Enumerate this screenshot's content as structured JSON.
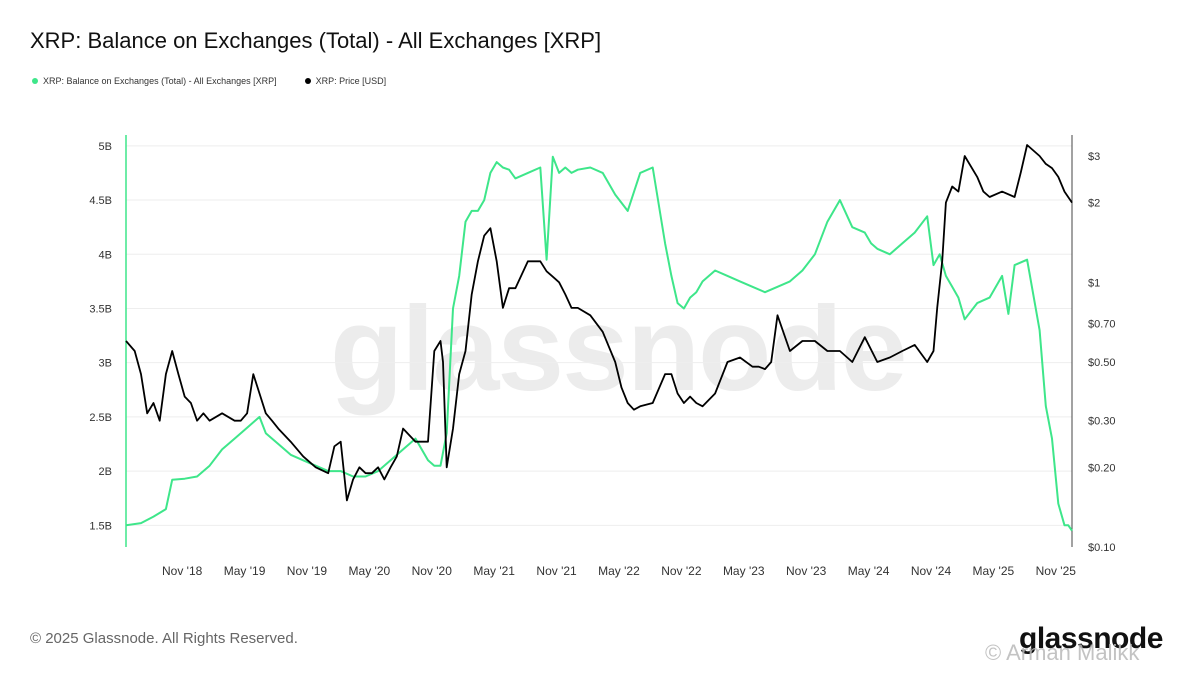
{
  "title": "XRP: Balance on Exchanges (Total) - All Exchanges [XRP]",
  "legend": [
    {
      "label": "XRP: Balance on Exchanges (Total) - All Exchanges [XRP]",
      "color": "#3ee68a"
    },
    {
      "label": "XRP: Price [USD]",
      "color": "#000000"
    }
  ],
  "footer": "© 2025 Glassnode. All Rights Reserved.",
  "brand": "glassnode",
  "watermark": "glassnode",
  "overlay_watermark": "© Arman Malikk",
  "colors": {
    "balance": "#3ee68a",
    "price": "#000000",
    "grid": "#eeeeee"
  },
  "chart_data": {
    "type": "line",
    "xlim": [
      2018.38,
      2025.96
    ],
    "x_ticks": [
      {
        "label": "Nov '18",
        "x": 2018.83
      },
      {
        "label": "May '19",
        "x": 2019.33
      },
      {
        "label": "Nov '19",
        "x": 2019.83
      },
      {
        "label": "May '20",
        "x": 2020.33
      },
      {
        "label": "Nov '20",
        "x": 2020.83
      },
      {
        "label": "May '21",
        "x": 2021.33
      },
      {
        "label": "Nov '21",
        "x": 2021.83
      },
      {
        "label": "May '22",
        "x": 2022.33
      },
      {
        "label": "Nov '22",
        "x": 2022.83
      },
      {
        "label": "May '23",
        "x": 2023.33
      },
      {
        "label": "Nov '23",
        "x": 2023.83
      },
      {
        "label": "May '24",
        "x": 2024.33
      },
      {
        "label": "Nov '24",
        "x": 2024.83
      },
      {
        "label": "May '25",
        "x": 2025.33
      },
      {
        "label": "Nov '25",
        "x": 2025.83
      }
    ],
    "y_left": {
      "ylim": [
        1.3,
        5.1
      ],
      "ticks": [
        {
          "label": "5B",
          "v": 5.0
        },
        {
          "label": "4.5B",
          "v": 4.5
        },
        {
          "label": "4B",
          "v": 4.0
        },
        {
          "label": "3.5B",
          "v": 3.5
        },
        {
          "label": "3B",
          "v": 3.0
        },
        {
          "label": "2.5B",
          "v": 2.5
        },
        {
          "label": "2B",
          "v": 2.0
        },
        {
          "label": "1.5B",
          "v": 1.5
        }
      ]
    },
    "y_right": {
      "scale": "log",
      "ylim": [
        0.1,
        3.6
      ],
      "ticks": [
        {
          "label": "$3",
          "v": 3
        },
        {
          "label": "$2",
          "v": 2
        },
        {
          "label": "$1",
          "v": 1
        },
        {
          "label": "$0.70",
          "v": 0.7
        },
        {
          "label": "$0.50",
          "v": 0.5
        },
        {
          "label": "$0.30",
          "v": 0.3
        },
        {
          "label": "$0.20",
          "v": 0.2
        },
        {
          "label": "$0.10",
          "v": 0.1
        }
      ]
    },
    "series": [
      {
        "name": "XRP: Balance on Exchanges (Total) - All Exchanges [XRP]",
        "axis": "left",
        "color": "#3ee68a",
        "x": [
          2018.38,
          2018.5,
          2018.6,
          2018.7,
          2018.75,
          2018.85,
          2018.95,
          2019.05,
          2019.15,
          2019.25,
          2019.35,
          2019.45,
          2019.5,
          2019.6,
          2019.7,
          2019.8,
          2019.9,
          2020.0,
          2020.1,
          2020.2,
          2020.3,
          2020.4,
          2020.5,
          2020.6,
          2020.7,
          2020.8,
          2020.85,
          2020.9,
          2020.95,
          2021.0,
          2021.05,
          2021.1,
          2021.15,
          2021.2,
          2021.25,
          2021.3,
          2021.35,
          2021.4,
          2021.45,
          2021.5,
          2021.6,
          2021.7,
          2021.75,
          2021.8,
          2021.85,
          2021.9,
          2021.95,
          2022.0,
          2022.1,
          2022.2,
          2022.3,
          2022.4,
          2022.5,
          2022.6,
          2022.7,
          2022.75,
          2022.8,
          2022.85,
          2022.9,
          2022.95,
          2023.0,
          2023.1,
          2023.2,
          2023.3,
          2023.4,
          2023.5,
          2023.6,
          2023.7,
          2023.8,
          2023.9,
          2024.0,
          2024.1,
          2024.2,
          2024.3,
          2024.35,
          2024.4,
          2024.5,
          2024.6,
          2024.7,
          2024.8,
          2024.85,
          2024.9,
          2024.95,
          2025.0,
          2025.05,
          2025.1,
          2025.2,
          2025.3,
          2025.4,
          2025.45,
          2025.5,
          2025.6,
          2025.7,
          2025.75,
          2025.8,
          2025.85,
          2025.9,
          2025.93,
          2025.96
        ],
        "y": [
          1.5,
          1.52,
          1.58,
          1.65,
          1.92,
          1.93,
          1.95,
          2.05,
          2.2,
          2.3,
          2.4,
          2.5,
          2.35,
          2.25,
          2.15,
          2.1,
          2.05,
          2.0,
          2.0,
          1.95,
          1.95,
          2.0,
          2.1,
          2.2,
          2.3,
          2.1,
          2.05,
          2.05,
          2.35,
          3.5,
          3.8,
          4.3,
          4.4,
          4.4,
          4.5,
          4.75,
          4.85,
          4.8,
          4.78,
          4.7,
          4.75,
          4.8,
          3.95,
          4.9,
          4.75,
          4.8,
          4.75,
          4.78,
          4.8,
          4.75,
          4.55,
          4.4,
          4.75,
          4.8,
          4.1,
          3.8,
          3.55,
          3.5,
          3.6,
          3.65,
          3.75,
          3.85,
          3.8,
          3.75,
          3.7,
          3.65,
          3.7,
          3.75,
          3.85,
          4.0,
          4.3,
          4.5,
          4.25,
          4.2,
          4.1,
          4.05,
          4.0,
          4.1,
          4.2,
          4.35,
          3.9,
          4.0,
          3.8,
          3.7,
          3.6,
          3.4,
          3.55,
          3.6,
          3.8,
          3.45,
          3.9,
          3.95,
          3.3,
          2.6,
          2.3,
          1.7,
          1.5,
          1.5,
          1.45
        ]
      },
      {
        "name": "XRP: Price [USD]",
        "axis": "right",
        "color": "#000000",
        "x": [
          2018.38,
          2018.45,
          2018.5,
          2018.55,
          2018.6,
          2018.65,
          2018.7,
          2018.75,
          2018.8,
          2018.85,
          2018.9,
          2018.95,
          2019.0,
          2019.05,
          2019.15,
          2019.25,
          2019.3,
          2019.35,
          2019.4,
          2019.45,
          2019.5,
          2019.55,
          2019.6,
          2019.7,
          2019.8,
          2019.9,
          2020.0,
          2020.05,
          2020.1,
          2020.15,
          2020.2,
          2020.25,
          2020.3,
          2020.35,
          2020.4,
          2020.45,
          2020.5,
          2020.55,
          2020.6,
          2020.7,
          2020.8,
          2020.85,
          2020.9,
          2020.92,
          2020.95,
          2021.0,
          2021.05,
          2021.1,
          2021.15,
          2021.2,
          2021.25,
          2021.3,
          2021.35,
          2021.4,
          2021.45,
          2021.5,
          2021.6,
          2021.7,
          2021.75,
          2021.8,
          2021.85,
          2021.9,
          2021.95,
          2022.0,
          2022.1,
          2022.2,
          2022.3,
          2022.35,
          2022.4,
          2022.45,
          2022.5,
          2022.6,
          2022.7,
          2022.75,
          2022.8,
          2022.85,
          2022.9,
          2022.95,
          2023.0,
          2023.1,
          2023.2,
          2023.3,
          2023.4,
          2023.45,
          2023.5,
          2023.55,
          2023.6,
          2023.7,
          2023.8,
          2023.9,
          2024.0,
          2024.1,
          2024.2,
          2024.3,
          2024.4,
          2024.5,
          2024.6,
          2024.7,
          2024.8,
          2024.85,
          2024.88,
          2024.92,
          2024.95,
          2025.0,
          2025.05,
          2025.1,
          2025.2,
          2025.25,
          2025.3,
          2025.4,
          2025.5,
          2025.55,
          2025.6,
          2025.7,
          2025.75,
          2025.8,
          2025.85,
          2025.9,
          2025.96
        ],
        "y": [
          0.6,
          0.55,
          0.45,
          0.32,
          0.35,
          0.3,
          0.45,
          0.55,
          0.45,
          0.37,
          0.35,
          0.3,
          0.32,
          0.3,
          0.32,
          0.3,
          0.3,
          0.32,
          0.45,
          0.38,
          0.32,
          0.3,
          0.28,
          0.25,
          0.22,
          0.2,
          0.19,
          0.24,
          0.25,
          0.15,
          0.18,
          0.2,
          0.19,
          0.19,
          0.2,
          0.18,
          0.2,
          0.22,
          0.28,
          0.25,
          0.25,
          0.55,
          0.6,
          0.5,
          0.2,
          0.28,
          0.45,
          0.55,
          0.9,
          1.2,
          1.5,
          1.6,
          1.2,
          0.8,
          0.95,
          0.95,
          1.2,
          1.2,
          1.1,
          1.05,
          1.0,
          0.9,
          0.8,
          0.8,
          0.75,
          0.65,
          0.5,
          0.4,
          0.35,
          0.33,
          0.34,
          0.35,
          0.45,
          0.45,
          0.38,
          0.35,
          0.37,
          0.35,
          0.34,
          0.38,
          0.5,
          0.52,
          0.48,
          0.48,
          0.47,
          0.5,
          0.75,
          0.55,
          0.6,
          0.6,
          0.55,
          0.55,
          0.5,
          0.62,
          0.5,
          0.52,
          0.55,
          0.58,
          0.5,
          0.55,
          0.8,
          1.2,
          2.0,
          2.3,
          2.2,
          3.0,
          2.5,
          2.2,
          2.1,
          2.2,
          2.1,
          2.6,
          3.3,
          3.0,
          2.8,
          2.7,
          2.5,
          2.2,
          2.0
        ]
      }
    ]
  }
}
